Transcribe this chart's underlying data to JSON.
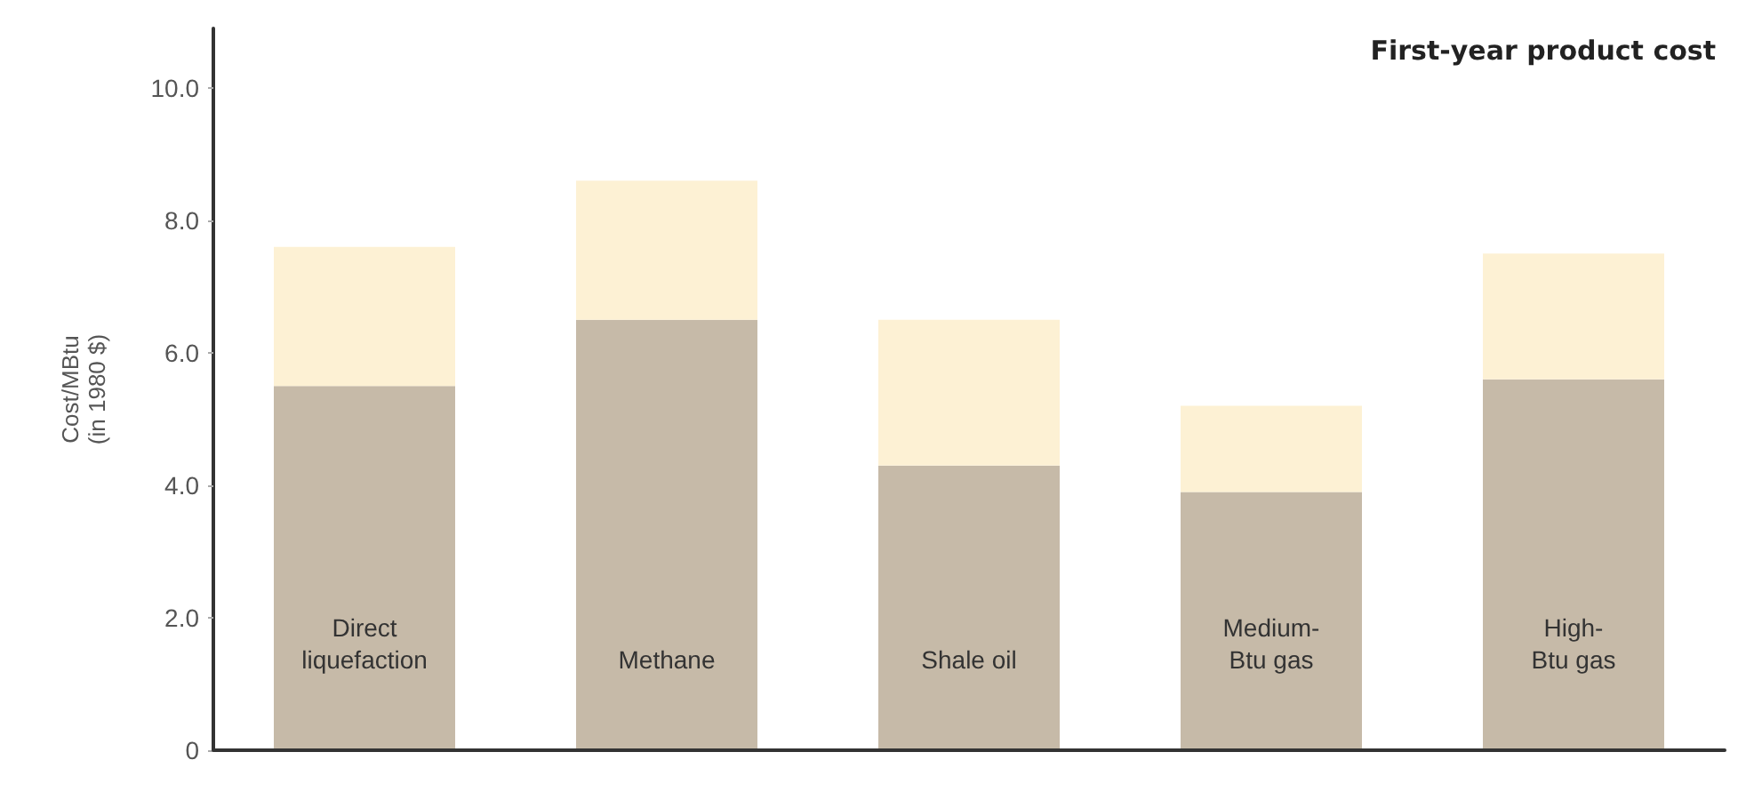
{
  "chart_data": {
    "type": "bar",
    "title": "First-year product cost",
    "ylabel": "Cost/MBtu\n(in 1980 $)",
    "categories": [
      "Direct\nliquefaction",
      "Methane",
      "Shale oil",
      "Medium-\nBtu gas",
      "High-\nBtu gas"
    ],
    "stacked": true,
    "series": [
      {
        "color": "#c6baa8",
        "values": [
          5.5,
          6.5,
          4.3,
          3.9,
          5.6
        ]
      },
      {
        "color": "#fdf1d4",
        "values": [
          2.1,
          2.1,
          2.2,
          1.3,
          1.9
        ]
      }
    ],
    "ylim": [
      0,
      10.9
    ],
    "yticks": [
      0,
      {
        "value": 2,
        "label": "2.0"
      },
      {
        "value": 4,
        "label": "4.0"
      },
      {
        "value": 6,
        "label": "6.0"
      },
      {
        "value": 8,
        "label": "8.0"
      },
      {
        "value": 10,
        "label": "10.0"
      }
    ],
    "grid": false
  }
}
